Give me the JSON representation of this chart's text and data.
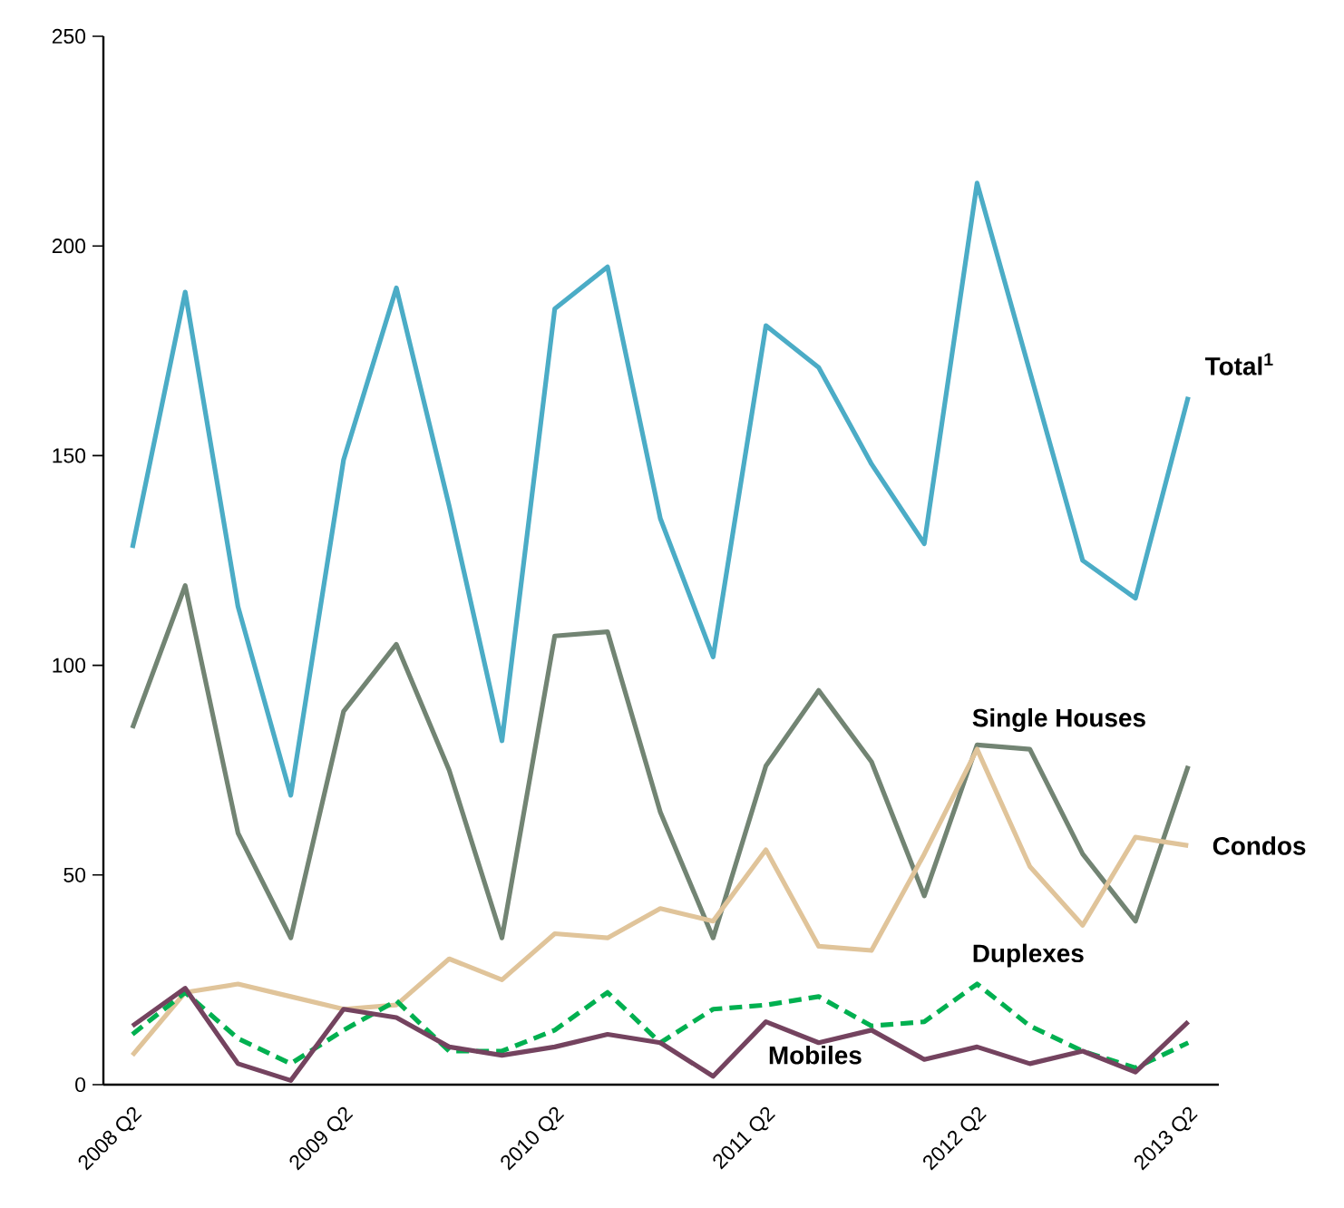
{
  "chart_data": {
    "type": "line",
    "categories": [
      "2008 Q2",
      null,
      null,
      null,
      "2009 Q2",
      null,
      null,
      null,
      "2010 Q2",
      null,
      null,
      null,
      "2011 Q2",
      null,
      null,
      null,
      "2012 Q2",
      null,
      null,
      null,
      "2013 Q2"
    ],
    "series": [
      {
        "name": "Total$^{1}$",
        "color": "#4bacc6",
        "values": [
          128,
          189,
          114,
          69,
          149,
          190,
          138,
          82,
          185,
          195,
          135,
          102,
          181,
          171,
          148,
          129,
          215,
          170,
          125,
          116,
          164
        ]
      },
      {
        "name": "Single Houses",
        "color": "#728473",
        "values": [
          85,
          119,
          60,
          35,
          89,
          105,
          75,
          35,
          107,
          108,
          65,
          35,
          76,
          94,
          77,
          45,
          81,
          80,
          55,
          39,
          76
        ]
      },
      {
        "name": "Condos",
        "color": "#e0c49a",
        "values": [
          7,
          22,
          24,
          21,
          18,
          19,
          30,
          25,
          36,
          35,
          42,
          39,
          56,
          33,
          32,
          55,
          80,
          52,
          38,
          59,
          57
        ]
      },
      {
        "name": "Duplexes",
        "color": "#00b050",
        "line_style": "dashed",
        "values": [
          12,
          22,
          11,
          5,
          13,
          20,
          8,
          8,
          13,
          22,
          10,
          18,
          19,
          21,
          14,
          15,
          24,
          14,
          8,
          4,
          10
        ]
      },
      {
        "name": "Mobiles",
        "color": "#74435f",
        "values": [
          14,
          23,
          5,
          1,
          18,
          16,
          9,
          7,
          9,
          12,
          10,
          2,
          15,
          10,
          13,
          6,
          9,
          5,
          8,
          3,
          15
        ]
      }
    ],
    "ylim": [
      0,
      250
    ],
    "yticks": [
      0,
      50,
      100,
      150,
      200,
      250
    ],
    "grid": false
  }
}
